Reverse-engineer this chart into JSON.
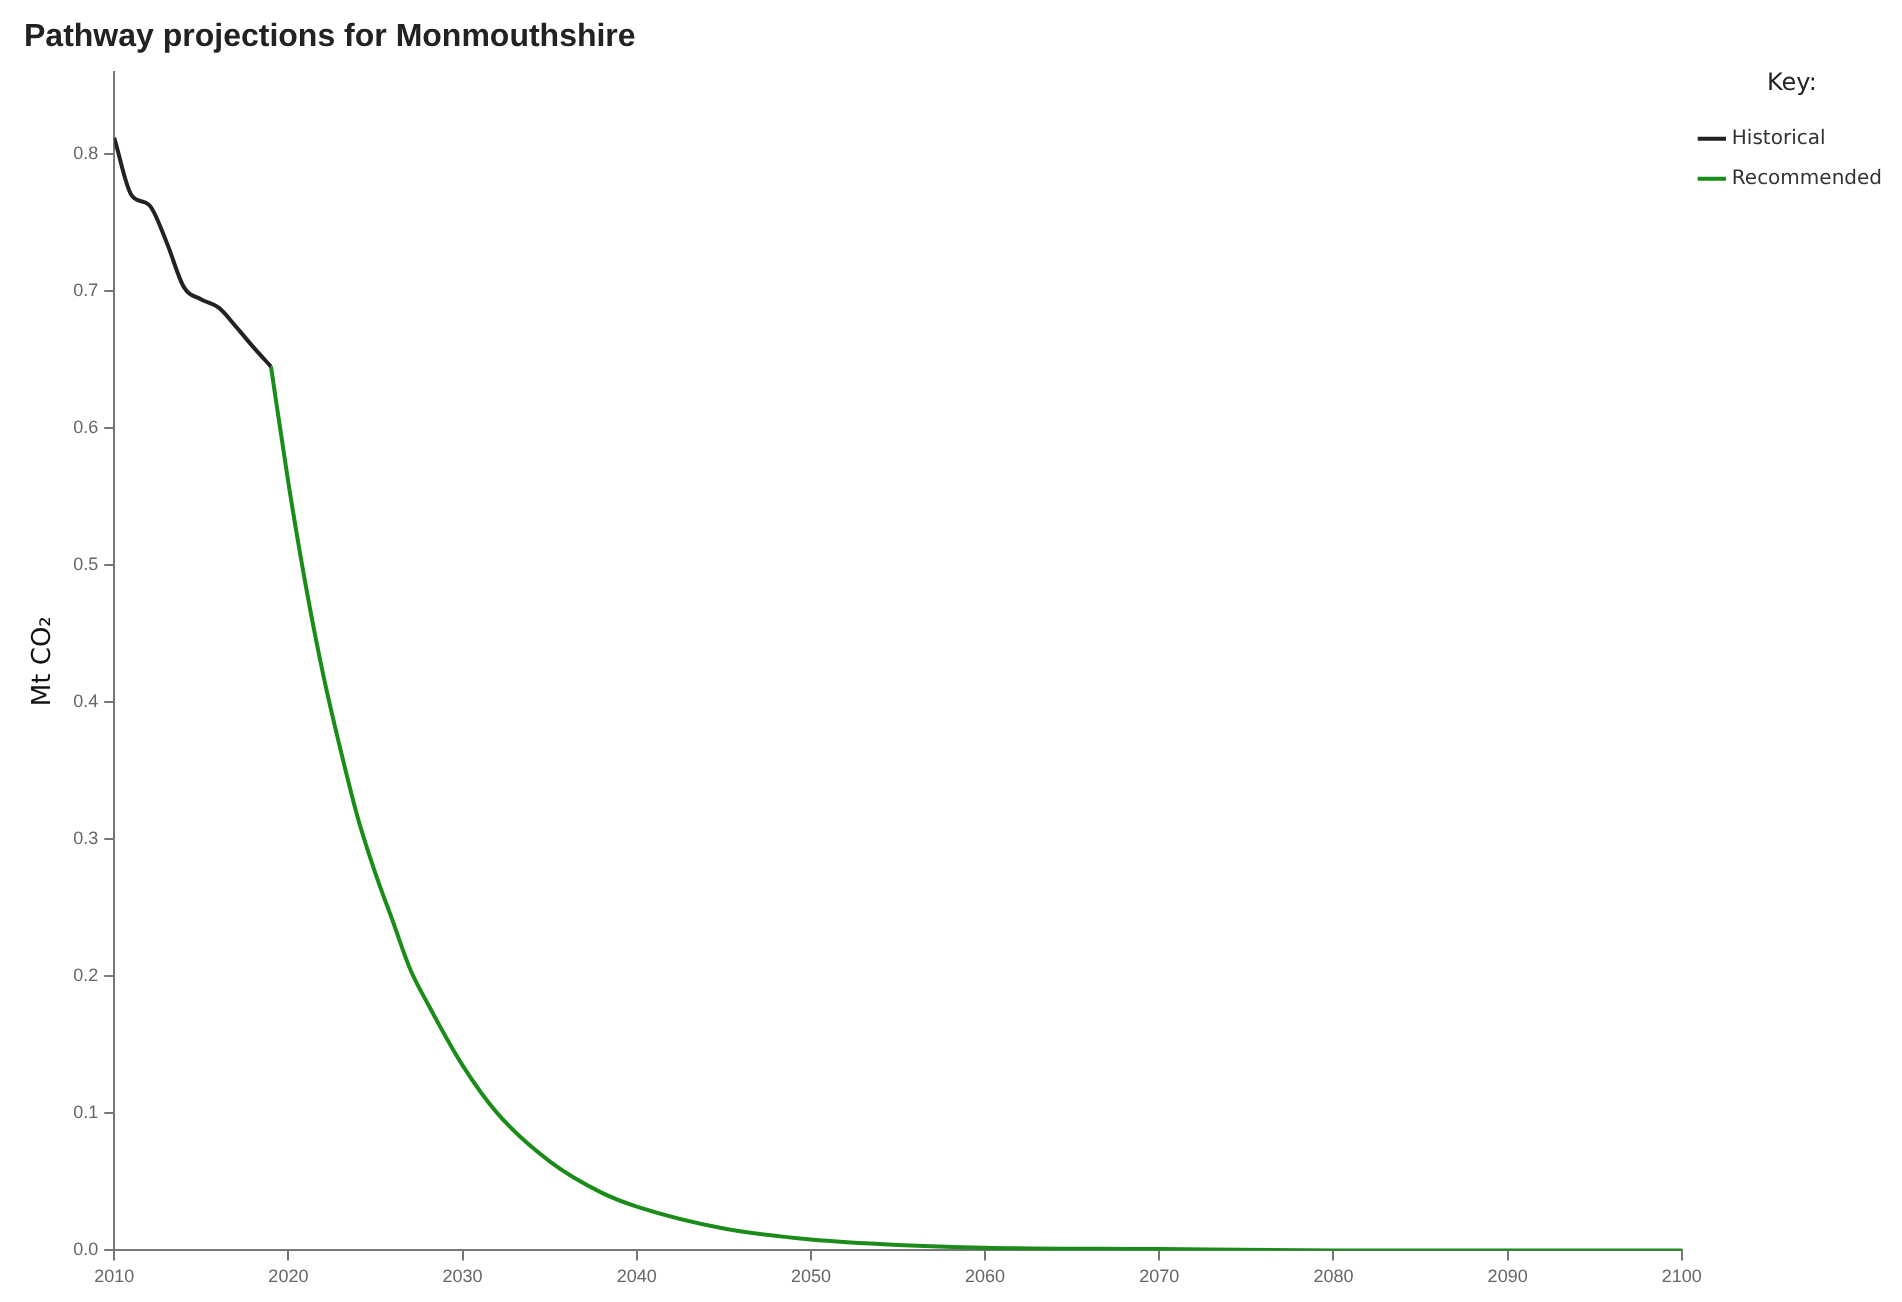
{
  "chart_data": {
    "type": "line",
    "title": "Pathway projections for Monmouthshire",
    "ylabel": "Mt CO₂",
    "legend_title": "Key:",
    "legend": "top right",
    "grid": false,
    "marker": "none",
    "line_style": "solid",
    "xlim": [
      2010,
      2100
    ],
    "xticks": [
      2010,
      2020,
      2030,
      2040,
      2050,
      2060,
      2070,
      2080,
      2090,
      2100
    ],
    "ylim": [
      0,
      0.86
    ],
    "yticks": [
      {
        "value": 0,
        "label": "0.0"
      },
      {
        "value": 0.1,
        "label": "0.1"
      },
      {
        "value": 0.2,
        "label": "0.2"
      },
      {
        "value": 0.3,
        "label": "0.3"
      },
      {
        "value": 0.4,
        "label": "0.4"
      },
      {
        "value": 0.5,
        "label": "0.5"
      },
      {
        "value": 0.6,
        "label": "0.6"
      },
      {
        "value": 0.7,
        "label": "0.7"
      },
      {
        "value": 0.8,
        "label": "0.8"
      }
    ],
    "series": [
      {
        "name": "Historical",
        "color": "#222222",
        "x": [
          2010,
          2011,
          2012,
          2013,
          2014,
          2015,
          2016,
          2017,
          2018,
          2019
        ],
        "values": [
          0.812,
          0.77,
          0.763,
          0.736,
          0.703,
          0.694,
          0.688,
          0.674,
          0.659,
          0.645
        ]
      },
      {
        "name": "Recommended",
        "color": "#1a8c1a",
        "x": [
          2019,
          2020,
          2021,
          2022,
          2023,
          2024,
          2025,
          2026,
          2027,
          2028,
          2030,
          2032,
          2035,
          2038,
          2040,
          2045,
          2050,
          2055,
          2060,
          2070,
          2080,
          2100
        ],
        "values": [
          0.645,
          0.56,
          0.485,
          0.42,
          0.365,
          0.315,
          0.275,
          0.24,
          0.205,
          0.18,
          0.135,
          0.1,
          0.065,
          0.042,
          0.032,
          0.016,
          0.008,
          0.004,
          0.002,
          0.001,
          0,
          0
        ]
      }
    ]
  }
}
